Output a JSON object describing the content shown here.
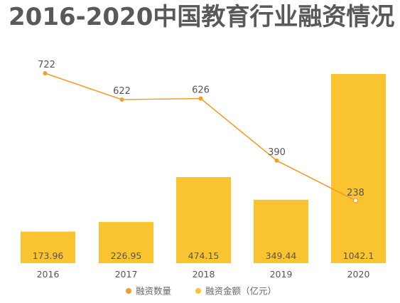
{
  "title": "2016-2020中国教育行业融资情况",
  "colors": {
    "bar": "#f9c42f",
    "line": "#f0a029",
    "point_highlight": "#ffffff"
  },
  "chart_data": {
    "type": "bar+line",
    "categories": [
      "2016",
      "2017",
      "2018",
      "2019",
      "2020"
    ],
    "series": [
      {
        "name": "融资数量",
        "type": "line",
        "values": [
          722,
          622,
          626,
          390,
          238
        ]
      },
      {
        "name": "融资金额（亿元）",
        "type": "bar",
        "values": [
          173.96,
          226.95,
          474.15,
          349.44,
          1042.1
        ]
      }
    ],
    "bar_value_labels": [
      "173.96",
      "226.95",
      "474.15",
      "349.44",
      "1042.1"
    ],
    "line_value_labels": [
      "722",
      "622",
      "626",
      "390",
      "238"
    ],
    "legend_position": "bottom-center",
    "grid": false
  }
}
